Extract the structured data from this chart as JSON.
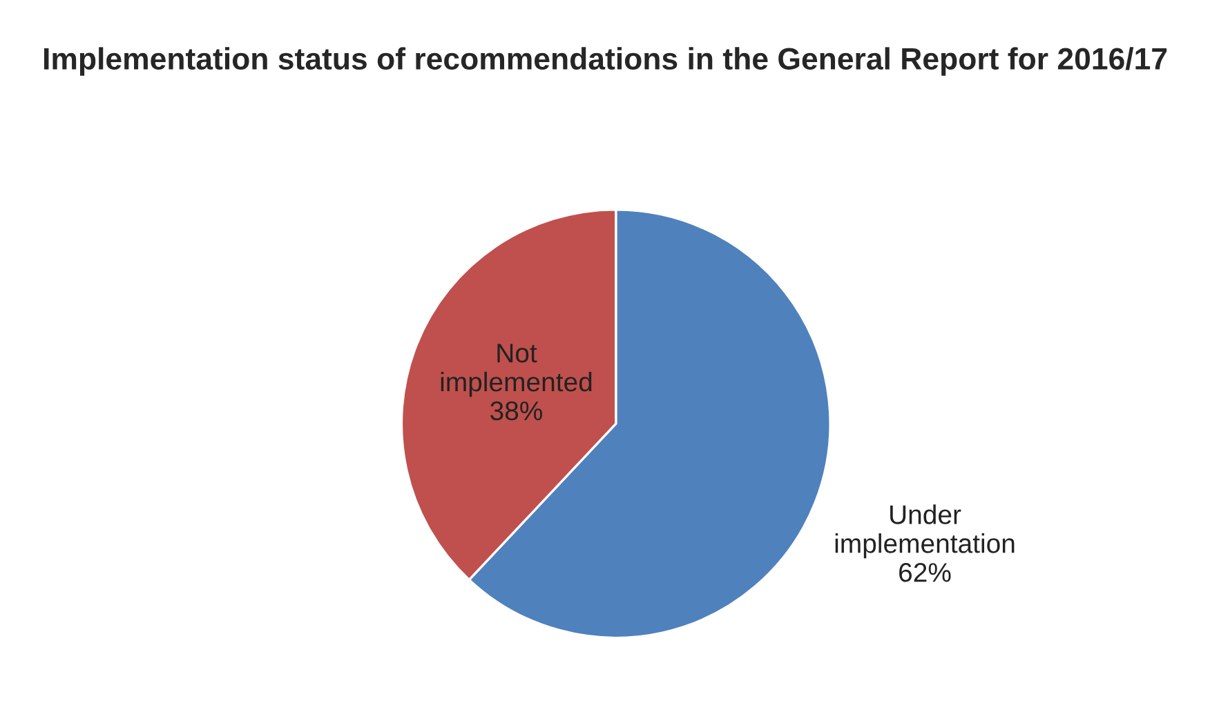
{
  "chart_data": {
    "type": "pie",
    "title": "Implementation status of recommendations in the General Report for 2016/17",
    "categories": [
      "Under implementation",
      "Not implemented"
    ],
    "values": [
      62,
      38
    ],
    "value_labels": [
      "62%",
      "38%"
    ],
    "colors": [
      "#4f81bd",
      "#c0504d"
    ],
    "legend": false
  }
}
